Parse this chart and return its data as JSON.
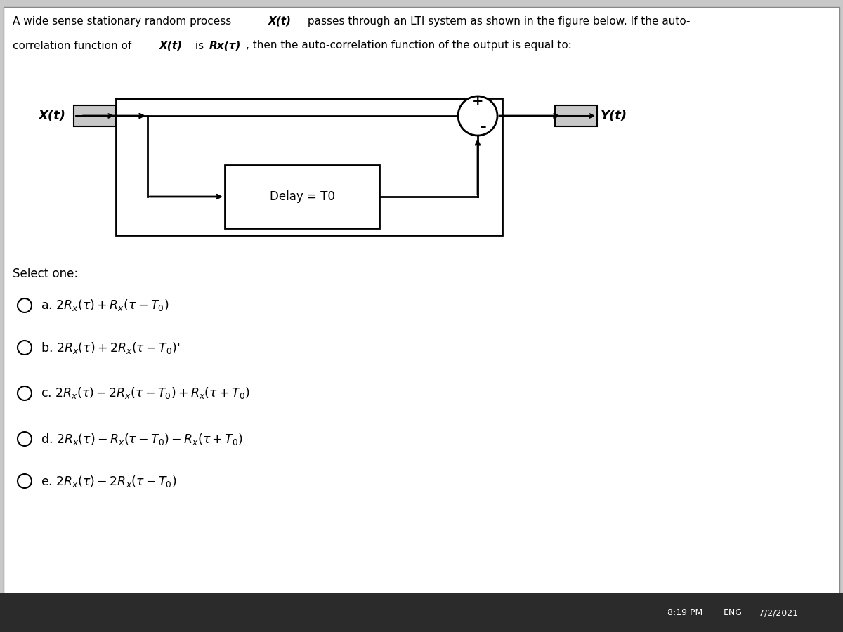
{
  "title_line1": "A wide sense stationary random process ",
  "title_Xt": "X(t)",
  "title_line1b": " passes through an LTI system as shown in the figure below. If the auto-",
  "title_line2": "correlation function of ",
  "title_Xt2": "X(t)",
  "title_line2b": " is ",
  "title_Rx": "Rx(τ)",
  "title_line2c": ", then the auto-correlation function of the output is equal to:",
  "bg_color": "#c8c8c8",
  "box_color": "#ffffff",
  "text_color": "#000000",
  "select_one": "Select one:",
  "options": [
    {
      "label": "a.",
      "formula": "2Rₓ(τ) + Rₓ(τ – T₀)"
    },
    {
      "label": "b.",
      "formula": "2Rₓ(τ) + 2Rₓ(τ – T₀)’"
    },
    {
      "label": "c.",
      "formula": "2Rₓ(τ) – 2Rₓ(τ – T₀) + Rₓ(τ + T₀)"
    },
    {
      "label": "d.",
      "formula": "2Rₓ(τ) – Rₓ(τ– T₀) – Rₓ(τ + T₀)"
    },
    {
      "label": "e.",
      "formula": "2Rₓ(τ) – 2Rₓ(τ – T₀)"
    }
  ],
  "delay_label": "Delay = T0",
  "Xt_label": "X(t)",
  "Yt_label": "Y(t)",
  "footer_time": "8:19 PM",
  "footer_lang": "ENG",
  "footer_date": "7/2/2021"
}
